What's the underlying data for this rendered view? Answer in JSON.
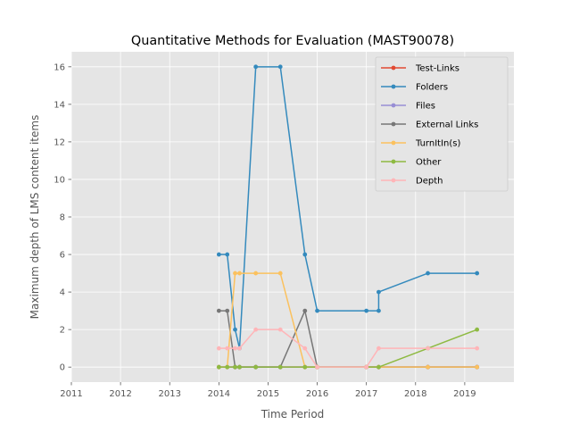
{
  "chart_data": {
    "type": "line",
    "title": "Quantitative Methods for Evaluation (MAST90078)",
    "xlabel": "Time Period",
    "ylabel": "Maximum depth of LMS content items",
    "xlim": [
      2011,
      2020
    ],
    "ylim": [
      -0.8,
      16.8
    ],
    "x_ticks": [
      "2011",
      "2012",
      "2013",
      "2014",
      "2015",
      "2016",
      "2017",
      "2018",
      "2019"
    ],
    "y_ticks": [
      "0",
      "2",
      "4",
      "6",
      "8",
      "10",
      "12",
      "14",
      "16"
    ],
    "grid": true,
    "legend_position": "top-right",
    "style": "ggplot",
    "series": [
      {
        "name": "Test-Links",
        "color": "#E24A33",
        "x": [
          2014.0,
          2014.17,
          2014.33,
          2014.42,
          2014.75,
          2015.25,
          2015.75,
          2016.0,
          2017.0,
          2017.25,
          2018.25,
          2019.25
        ],
        "y": [
          0,
          0,
          0,
          0,
          0,
          0,
          0,
          0,
          0,
          0,
          0,
          0
        ]
      },
      {
        "name": "Folders",
        "color": "#348ABD",
        "x": [
          2014.0,
          2014.17,
          2014.33,
          2014.42,
          2014.75,
          2015.25,
          2015.75,
          2016.0,
          2017.0,
          2017.25,
          2017.25,
          2018.25,
          2019.25
        ],
        "y": [
          6,
          6,
          2,
          1,
          16,
          16,
          6,
          3,
          3,
          3,
          4,
          5,
          5
        ]
      },
      {
        "name": "Files",
        "color": "#988ED5",
        "x": [
          2014.0,
          2014.17,
          2014.33,
          2014.42,
          2014.75,
          2015.25,
          2015.75,
          2016.0,
          2017.0,
          2017.25,
          2018.25,
          2019.25
        ],
        "y": [
          0,
          0,
          0,
          0,
          0,
          0,
          0,
          0,
          0,
          0,
          0,
          0
        ]
      },
      {
        "name": "External Links",
        "color": "#777777",
        "x": [
          2014.0,
          2014.17,
          2014.33,
          2014.42,
          2014.75,
          2015.25,
          2015.75,
          2016.0,
          2017.0,
          2017.25,
          2018.25,
          2019.25
        ],
        "y": [
          3,
          3,
          0,
          0,
          0,
          0,
          3,
          0,
          0,
          0,
          0,
          0
        ]
      },
      {
        "name": "TurnItIn(s)",
        "color": "#FBC15E",
        "x": [
          2014.0,
          2014.17,
          2014.33,
          2014.42,
          2014.75,
          2015.25,
          2015.75,
          2016.0,
          2017.0,
          2017.25,
          2018.25,
          2019.25
        ],
        "y": [
          0,
          0,
          5,
          5,
          5,
          5,
          0,
          0,
          0,
          0,
          0,
          0
        ]
      },
      {
        "name": "Other",
        "color": "#8EBA42",
        "x": [
          2014.0,
          2014.17,
          2014.33,
          2014.42,
          2014.75,
          2015.25,
          2015.75,
          2016.0,
          2017.0,
          2017.25,
          2018.25,
          2019.25
        ],
        "y": [
          0,
          0,
          0,
          0,
          0,
          0,
          0,
          0,
          0,
          0,
          1,
          2
        ]
      },
      {
        "name": "Depth",
        "color": "#FFB5B8",
        "x": [
          2014.0,
          2014.17,
          2014.33,
          2014.42,
          2014.75,
          2015.25,
          2015.75,
          2016.0,
          2017.0,
          2017.25,
          2018.25,
          2019.25
        ],
        "y": [
          1,
          1,
          1,
          1,
          2,
          2,
          1,
          0,
          0,
          1,
          1,
          1
        ]
      }
    ]
  }
}
